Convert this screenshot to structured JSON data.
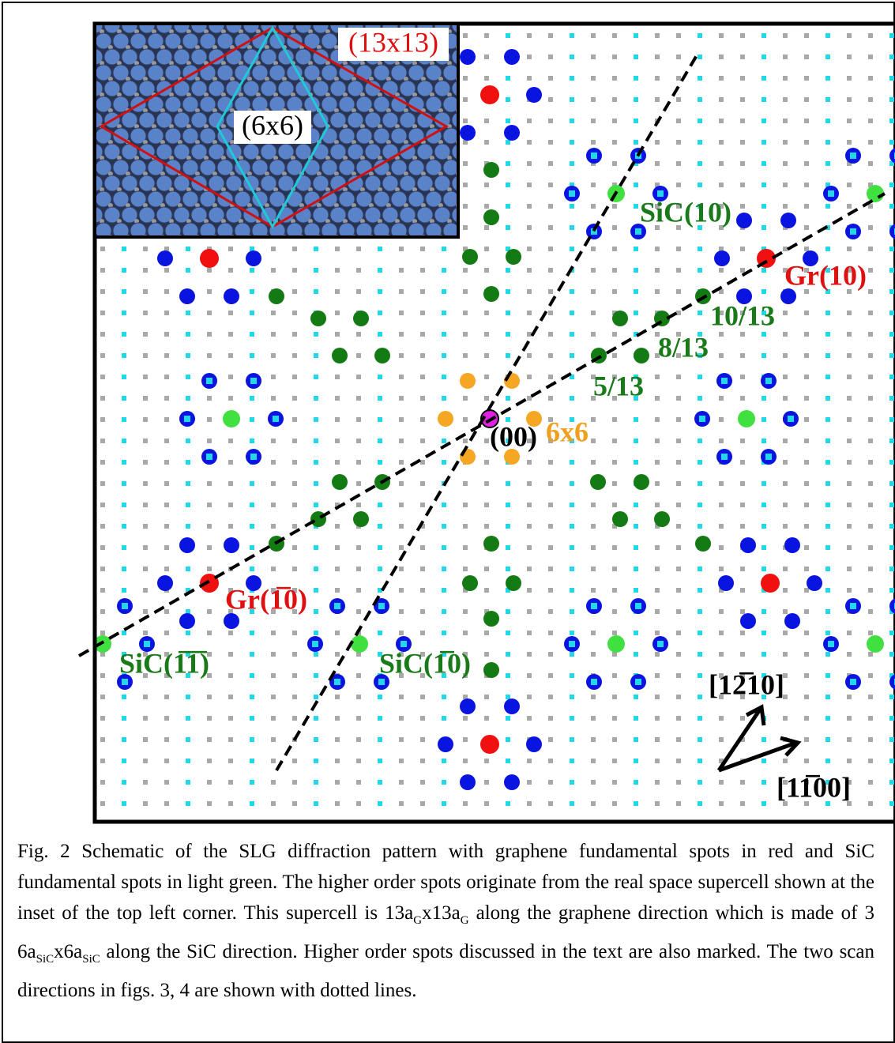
{
  "figure": {
    "inset": {
      "supercell_label": "(13x13)",
      "cell_label": "(6x6)"
    },
    "labels": {
      "sic_10": "SiC(10)",
      "gr_10": "Gr(10)",
      "order_10_13": "10/13",
      "order_8_13": "8/13",
      "order_5_13": "5/13",
      "origin": "(00)",
      "six_by_six": "6x6",
      "gr_bar10": "Gr(1̅0)",
      "sic_bar1bar1": "SiC(1̅1̅)",
      "sic_bar10": "SiC(1̅0)",
      "dir_1210": "[12̅10]",
      "dir_1100": "[11̅00]"
    },
    "caption": [
      "Fig. 2 Schematic of the SLG diffraction pattern with graphene fundamental spots in red and SiC fundamental spots in light green. The higher order spots originate from the real space supercell shown at the inset of the top left corner. This supercell is 13a",
      "G",
      "x13a",
      "G",
      " along the graphene direction which is made of 3 6a",
      "SiC",
      "x6a",
      "SiC",
      " along the SiC direction. Higher order spots discussed in the text are also marked.  The two scan directions in figs. 3, 4 are shown with dotted lines."
    ]
  }
}
